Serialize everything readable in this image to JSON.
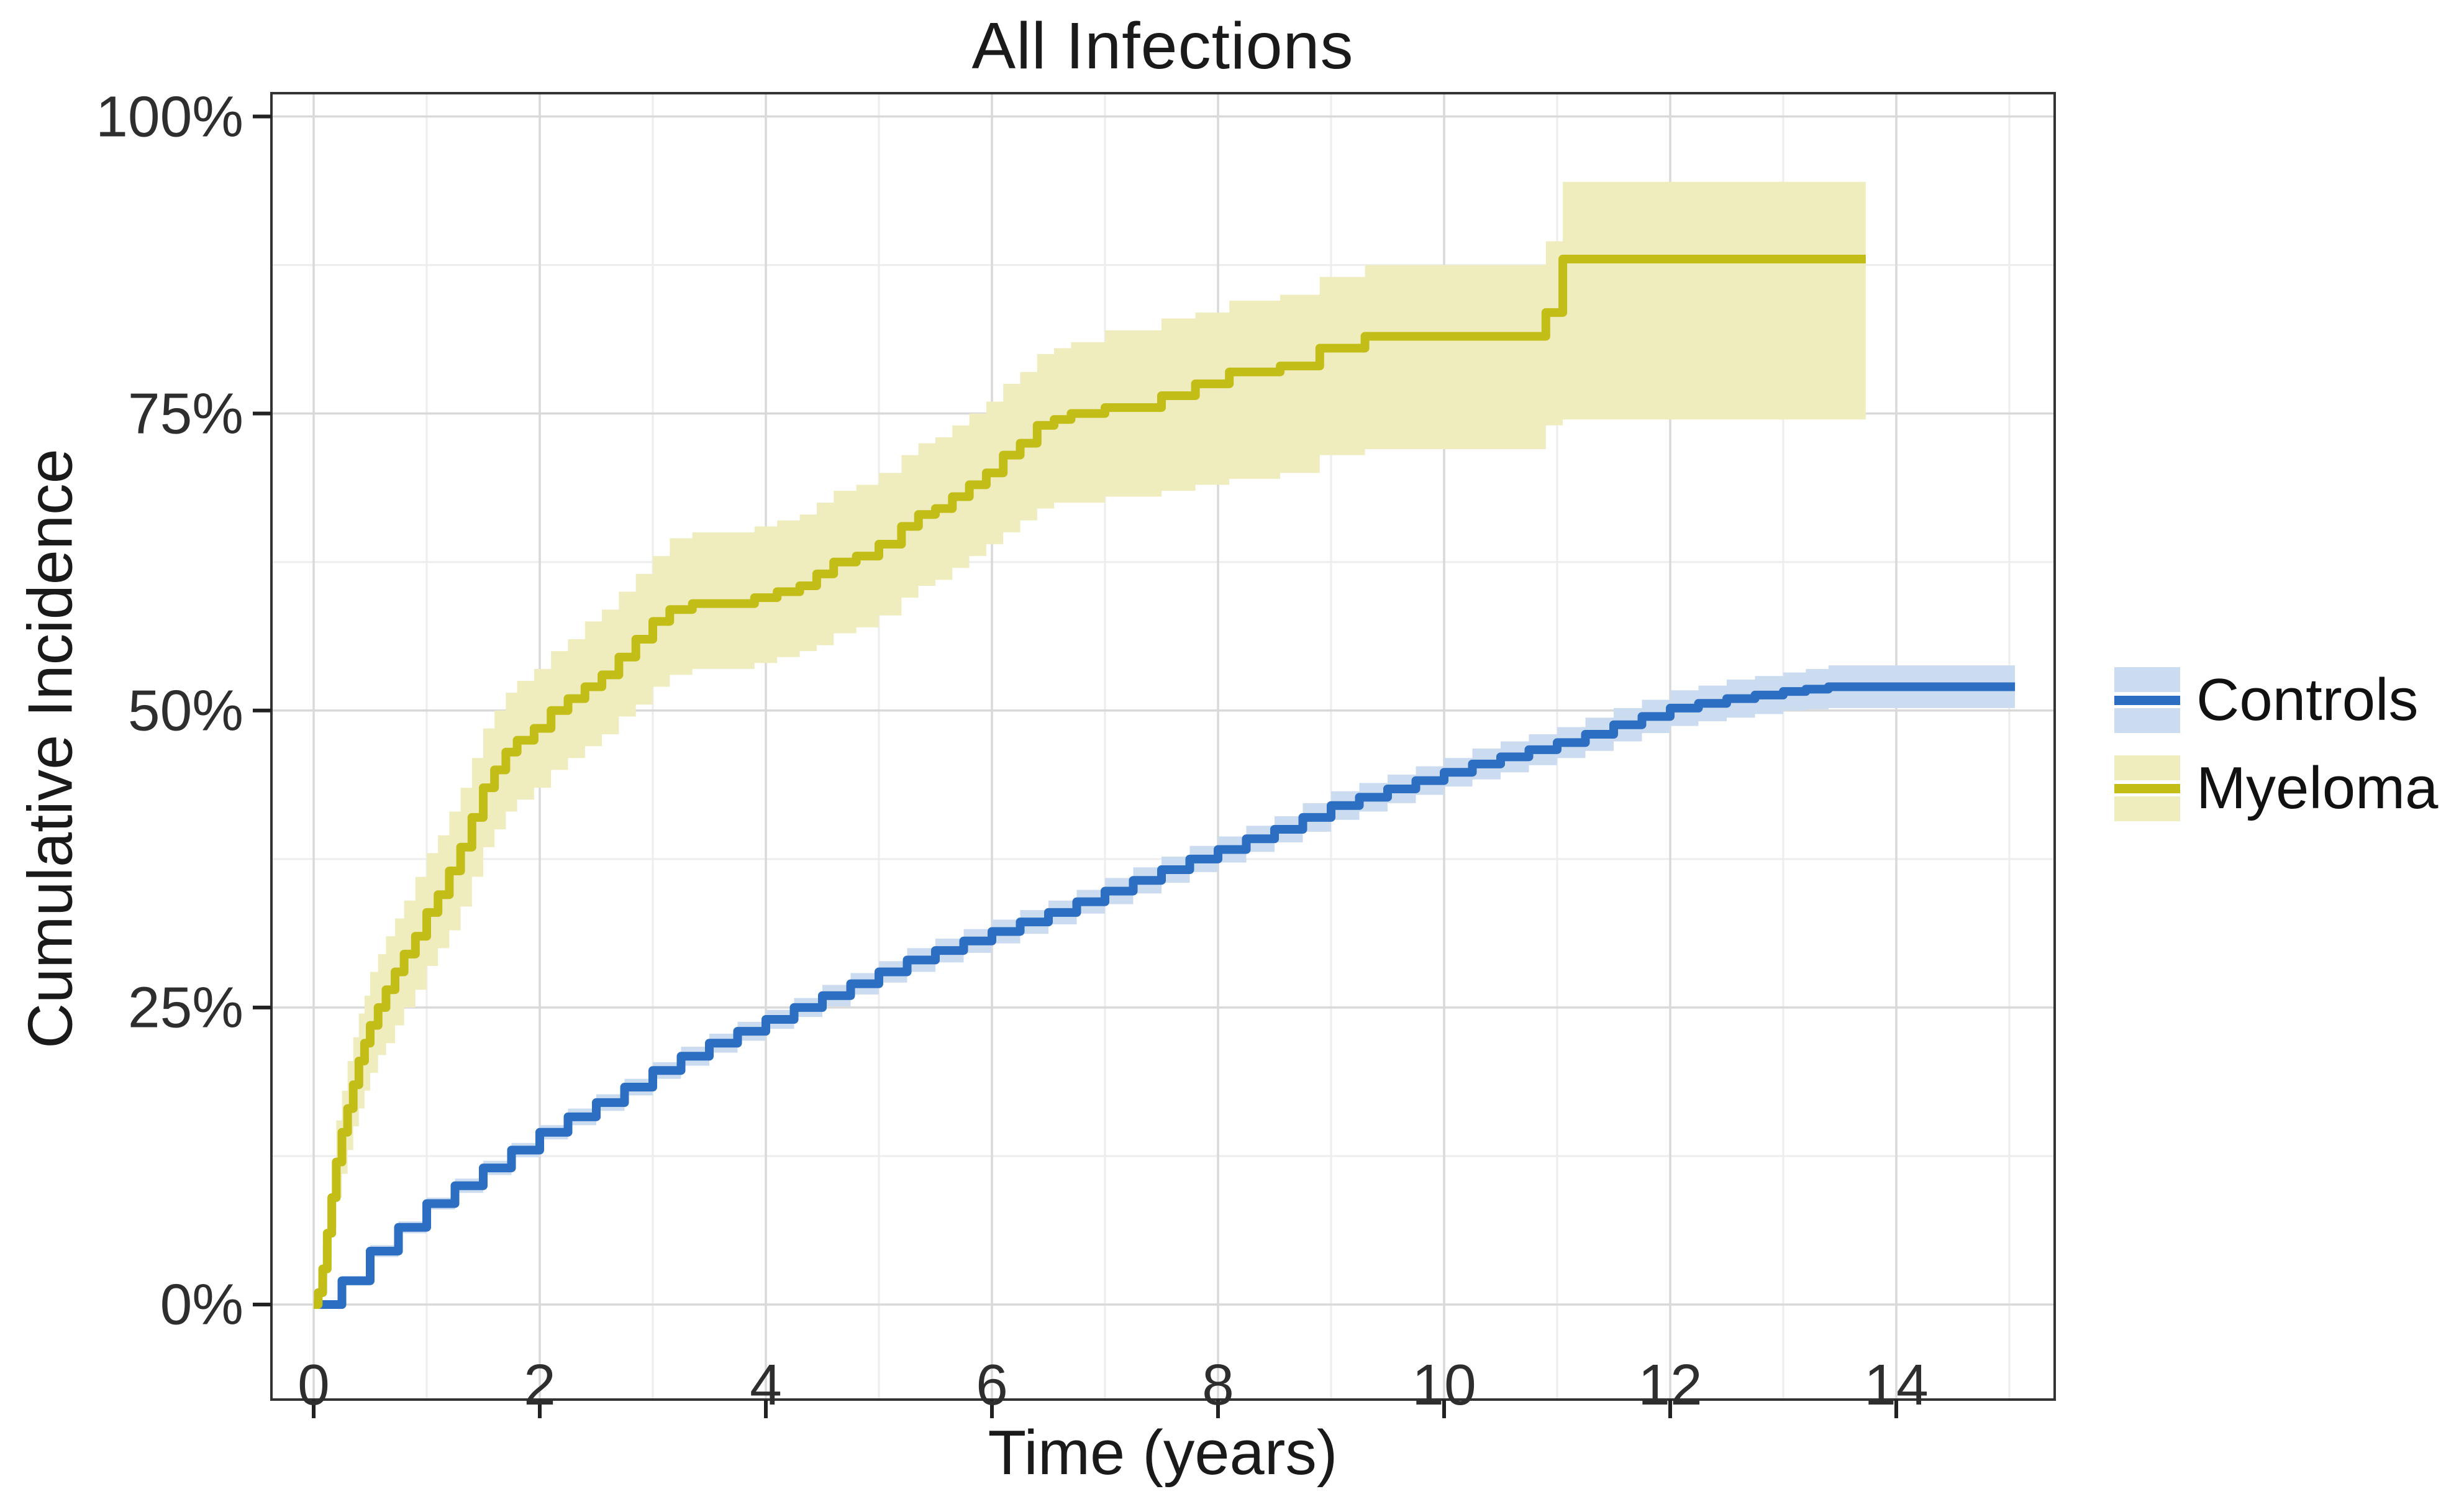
{
  "title": "All Infections",
  "x_axis": {
    "label": "Time (years)",
    "tick_values": [
      0,
      2,
      4,
      6,
      8,
      10,
      12,
      14
    ],
    "tick_labels": [
      "0",
      "2",
      "4",
      "6",
      "8",
      "10",
      "12",
      "14"
    ],
    "minor_grid_values": [
      1,
      3,
      5,
      7,
      9,
      11,
      13,
      15
    ],
    "range_years": [
      -0.37,
      15.4
    ]
  },
  "y_axis": {
    "label": "Cumulative Incidence",
    "tick_values": [
      0,
      25,
      50,
      75,
      100
    ],
    "tick_labels": [
      "0%",
      "25%",
      "50%",
      "75%",
      "100%"
    ],
    "minor_grid_values": [
      12.5,
      37.5,
      62.5,
      87.5
    ],
    "range_pct": [
      -8,
      102
    ]
  },
  "legend": {
    "position": "right",
    "items": [
      {
        "label": "Controls",
        "line_color": "#2B6EC2",
        "band_color": "#CBDBF0"
      },
      {
        "label": "Myeloma",
        "line_color": "#C3BD17",
        "band_color": "#EFEDBE"
      }
    ]
  },
  "colors": {
    "background": "#ffffff",
    "panel_background": "#ffffff",
    "panel_border": "#333333",
    "grid_major": "#d9d9d9",
    "grid_minor": "#ededed",
    "tick_mark": "#222222",
    "text": "#1a1a1a"
  },
  "chart_data": {
    "type": "line",
    "subtype": "cumulative-incidence-step-curves-with-confidence-bands",
    "title": "All Infections",
    "xlabel": "Time (years)",
    "ylabel": "Cumulative Incidence",
    "xlim": [
      0,
      15
    ],
    "ylim_pct": [
      0,
      100
    ],
    "grid": true,
    "legend_position": "right-middle",
    "series": [
      {
        "name": "Controls",
        "line_color": "#2B6EC2",
        "band_color": "#CBDBF0",
        "points_t_pct_lo_hi": [
          [
            0.05,
            0,
            0,
            0
          ],
          [
            0.25,
            2,
            1.6,
            2.4
          ],
          [
            0.5,
            4.5,
            4,
            5
          ],
          [
            0.75,
            6.5,
            6,
            7
          ],
          [
            1.0,
            8.5,
            8,
            9
          ],
          [
            1.25,
            10,
            9.4,
            10.6
          ],
          [
            1.5,
            11.5,
            10.9,
            12.1
          ],
          [
            1.75,
            13,
            12.4,
            13.6
          ],
          [
            2.0,
            14.5,
            13.9,
            15.1
          ],
          [
            2.25,
            15.8,
            15.1,
            16.5
          ],
          [
            2.5,
            17,
            16.3,
            17.7
          ],
          [
            2.75,
            18.3,
            17.6,
            19
          ],
          [
            3.0,
            19.7,
            19,
            20.4
          ],
          [
            3.25,
            20.9,
            20.1,
            21.7
          ],
          [
            3.5,
            22,
            21.2,
            22.8
          ],
          [
            3.75,
            23,
            22.2,
            23.8
          ],
          [
            4.0,
            24,
            23.2,
            24.8
          ],
          [
            4.25,
            25,
            24.2,
            25.8
          ],
          [
            4.5,
            26,
            25.1,
            26.9
          ],
          [
            4.75,
            27,
            26.1,
            27.9
          ],
          [
            5.0,
            28,
            27.1,
            28.9
          ],
          [
            5.25,
            29,
            28,
            30
          ],
          [
            5.5,
            29.8,
            28.8,
            30.8
          ],
          [
            5.75,
            30.6,
            29.6,
            31.6
          ],
          [
            6.0,
            31.4,
            30.4,
            32.4
          ],
          [
            6.25,
            32.2,
            31.2,
            33.2
          ],
          [
            6.5,
            33,
            32,
            34
          ],
          [
            6.75,
            33.9,
            32.9,
            34.9
          ],
          [
            7.0,
            34.8,
            33.7,
            35.9
          ],
          [
            7.25,
            35.7,
            34.6,
            36.8
          ],
          [
            7.5,
            36.6,
            35.5,
            37.7
          ],
          [
            7.75,
            37.5,
            36.4,
            38.6
          ],
          [
            8.0,
            38.3,
            37.2,
            39.4
          ],
          [
            8.25,
            39.2,
            38.1,
            40.3
          ],
          [
            8.5,
            40,
            38.9,
            41.1
          ],
          [
            8.75,
            41,
            39.8,
            42.2
          ],
          [
            9.0,
            42,
            40.8,
            43.2
          ],
          [
            9.25,
            42.7,
            41.5,
            43.9
          ],
          [
            9.5,
            43.4,
            42.2,
            44.6
          ],
          [
            9.75,
            44.1,
            42.9,
            45.3
          ],
          [
            10.0,
            44.8,
            43.6,
            46
          ],
          [
            10.25,
            45.5,
            44.2,
            46.8
          ],
          [
            10.5,
            46.1,
            44.8,
            47.4
          ],
          [
            10.75,
            46.7,
            45.4,
            48
          ],
          [
            11.0,
            47.3,
            46,
            48.6
          ],
          [
            11.25,
            48,
            46.6,
            49.4
          ],
          [
            11.5,
            48.8,
            47.4,
            50.2
          ],
          [
            11.75,
            49.5,
            48.1,
            50.9
          ],
          [
            12.0,
            50.2,
            48.7,
            51.7
          ],
          [
            12.25,
            50.6,
            49.1,
            52.1
          ],
          [
            12.5,
            51,
            49.4,
            52.6
          ],
          [
            12.75,
            51.3,
            49.7,
            52.9
          ],
          [
            13.0,
            51.6,
            50,
            53.2
          ],
          [
            13.2,
            51.8,
            50.1,
            53.5
          ],
          [
            13.4,
            52,
            50.2,
            53.8
          ],
          [
            15.05,
            52,
            50.2,
            53.8
          ]
        ]
      },
      {
        "name": "Myeloma",
        "line_color": "#C3BD17",
        "band_color": "#EFEDBE",
        "points_t_pct_lo_hi": [
          [
            0.0,
            0,
            0,
            0
          ],
          [
            0.04,
            1,
            0.3,
            2
          ],
          [
            0.08,
            3,
            1.5,
            5
          ],
          [
            0.12,
            6,
            4,
            9
          ],
          [
            0.16,
            9,
            6.5,
            12
          ],
          [
            0.2,
            12,
            9,
            15.5
          ],
          [
            0.25,
            14.5,
            11,
            18
          ],
          [
            0.3,
            16.5,
            13,
            20.5
          ],
          [
            0.35,
            18.5,
            15,
            22.5
          ],
          [
            0.4,
            20.5,
            16.5,
            24.5
          ],
          [
            0.45,
            22,
            18,
            26
          ],
          [
            0.5,
            23.5,
            19.5,
            28
          ],
          [
            0.57,
            25,
            21,
            29.5
          ],
          [
            0.64,
            26.5,
            22,
            31
          ],
          [
            0.72,
            28,
            23.5,
            32.5
          ],
          [
            0.8,
            29.5,
            25,
            34
          ],
          [
            0.9,
            31,
            26.5,
            36
          ],
          [
            1.0,
            33,
            28.5,
            38
          ],
          [
            1.1,
            34.5,
            30,
            39.5
          ],
          [
            1.2,
            36.5,
            31.5,
            41.5
          ],
          [
            1.3,
            38.5,
            33.5,
            43.5
          ],
          [
            1.4,
            41,
            36,
            46
          ],
          [
            1.5,
            43.5,
            38.5,
            48.5
          ],
          [
            1.6,
            45,
            40,
            50
          ],
          [
            1.7,
            46.5,
            41.5,
            51.5
          ],
          [
            1.8,
            47.5,
            42.5,
            52.5
          ],
          [
            1.95,
            48.5,
            43.5,
            53.5
          ],
          [
            2.1,
            50,
            45,
            55
          ],
          [
            2.25,
            51,
            46,
            56
          ],
          [
            2.4,
            52,
            47,
            57.5
          ],
          [
            2.55,
            53,
            48,
            58.5
          ],
          [
            2.7,
            54.5,
            49.5,
            60
          ],
          [
            2.85,
            56,
            50.5,
            61.5
          ],
          [
            3.0,
            57.5,
            52,
            63
          ],
          [
            3.15,
            58.5,
            53,
            64.5
          ],
          [
            3.35,
            59,
            53.5,
            65
          ],
          [
            3.9,
            59.5,
            54,
            65.5
          ],
          [
            4.1,
            60,
            54.5,
            66
          ],
          [
            4.3,
            60.5,
            55,
            66.5
          ],
          [
            4.45,
            61.5,
            55.5,
            67.5
          ],
          [
            4.6,
            62.5,
            56.5,
            68.5
          ],
          [
            4.8,
            63,
            57,
            69
          ],
          [
            5.0,
            64,
            58,
            70
          ],
          [
            5.2,
            65.5,
            59.5,
            71.5
          ],
          [
            5.35,
            66.5,
            60.5,
            72.5
          ],
          [
            5.5,
            67,
            61,
            73
          ],
          [
            5.65,
            68,
            62,
            74
          ],
          [
            5.8,
            69,
            63,
            75
          ],
          [
            5.95,
            70,
            64,
            76
          ],
          [
            6.1,
            71.5,
            65,
            77.5
          ],
          [
            6.25,
            72.5,
            66,
            78.5
          ],
          [
            6.4,
            74,
            67,
            80
          ],
          [
            6.55,
            74.5,
            67.5,
            80.5
          ],
          [
            6.7,
            75,
            67.5,
            81
          ],
          [
            7.0,
            75.5,
            68,
            82
          ],
          [
            7.5,
            76.5,
            68.5,
            83
          ],
          [
            7.8,
            77.5,
            69,
            83.5
          ],
          [
            8.1,
            78.5,
            69.5,
            84.5
          ],
          [
            8.55,
            79,
            70,
            85
          ],
          [
            8.9,
            80.5,
            71.5,
            86.5
          ],
          [
            9.3,
            81.5,
            72,
            87.5
          ],
          [
            10.9,
            83.5,
            74,
            89.5
          ],
          [
            11.05,
            88,
            74.5,
            94.5
          ],
          [
            13.73,
            88,
            74.5,
            94.5
          ]
        ]
      }
    ]
  }
}
